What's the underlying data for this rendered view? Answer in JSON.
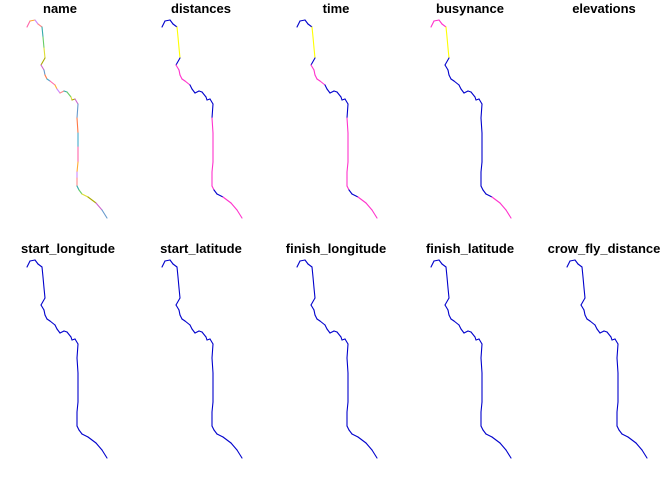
{
  "figure": {
    "panels": [
      {
        "title": "name",
        "color_mode": "multi"
      },
      {
        "title": "distances",
        "color_mode": "distances"
      },
      {
        "title": "time",
        "color_mode": "time"
      },
      {
        "title": "busynance",
        "color_mode": "busynance"
      },
      {
        "title": "elevations",
        "color_mode": "none"
      },
      {
        "title": "start_longitude",
        "color_mode": "blue"
      },
      {
        "title": "start_latitude",
        "color_mode": "blue"
      },
      {
        "title": "finish_longitude",
        "color_mode": "blue"
      },
      {
        "title": "finish_latitude",
        "color_mode": "blue"
      },
      {
        "title": "crow_fly_distance",
        "color_mode": "blue"
      }
    ]
  },
  "colors": {
    "background": "#ffffff",
    "title": "#000000",
    "route_base": "#0000cc",
    "high_value": "#ff33cc",
    "highest_value": "#ffff00",
    "peak_value": "#ff9933",
    "name_palette": [
      "#ff66aa",
      "#ffaa33",
      "#cc88ff",
      "#ff8888",
      "#33aaaa",
      "#66cc66",
      "#dddd33",
      "#aaaa00",
      "#cc66cc",
      "#6699cc",
      "#ff7744",
      "#44aacc"
    ]
  }
}
